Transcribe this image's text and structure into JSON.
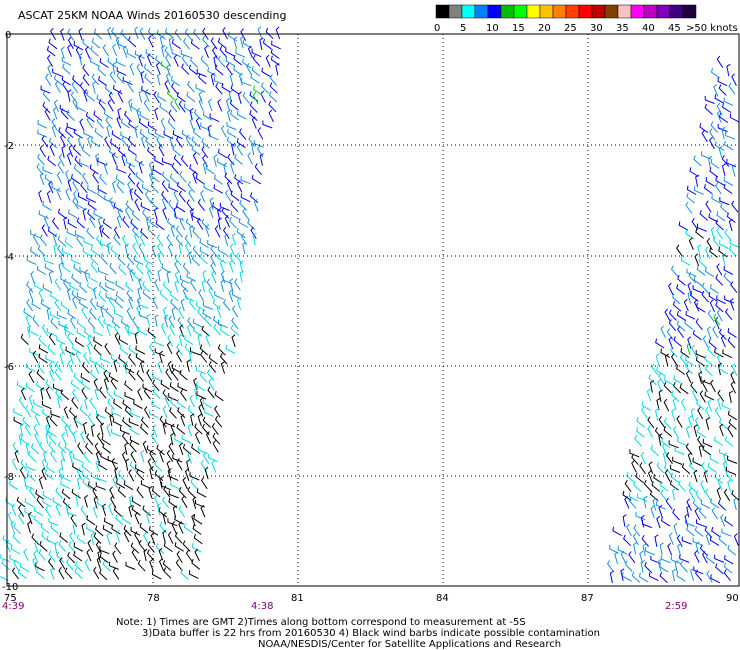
{
  "title": "ASCAT 25KM NOAA Winds 20160530 descending",
  "legend": {
    "labels": [
      "0",
      "5",
      "10",
      "15",
      "20",
      "25",
      "30",
      "35",
      "40",
      "45",
      ">50 knots"
    ],
    "colors": [
      "#000000",
      "#808080",
      "#00ffff",
      "#0080ff",
      "#0000ff",
      "#00c000",
      "#00ff00",
      "#ffff00",
      "#ffc000",
      "#ff8000",
      "#ff4000",
      "#ff0000",
      "#c00000",
      "#804000",
      "#ffc0c0",
      "#ff00ff",
      "#c000c0",
      "#8000c0",
      "#400080",
      "#200040"
    ]
  },
  "axes": {
    "y_ticks": [
      "0",
      "-2",
      "-4",
      "-6",
      "-8",
      "-10"
    ],
    "x_ticks": [
      "75",
      "78",
      "81",
      "84",
      "87",
      "90"
    ]
  },
  "times": [
    "4:39",
    "4:38",
    "2:59"
  ],
  "notes": [
    "Note: 1) Times are GMT 2)Times along bottom correspond to measurement at -5S",
    "3)Data buffer is 22 hrs from 20160530 4) Black wind barbs indicate possible contamination",
    "NOAA/NESDIS/Center for Satellite Applications and Research"
  ],
  "colors": {
    "time": "#800080",
    "barb_black": "#000000",
    "barb_cyan": "#00d8e8",
    "barb_lightblue": "#1890e0",
    "barb_blue": "#0000ff",
    "barb_green": "#00d000"
  }
}
